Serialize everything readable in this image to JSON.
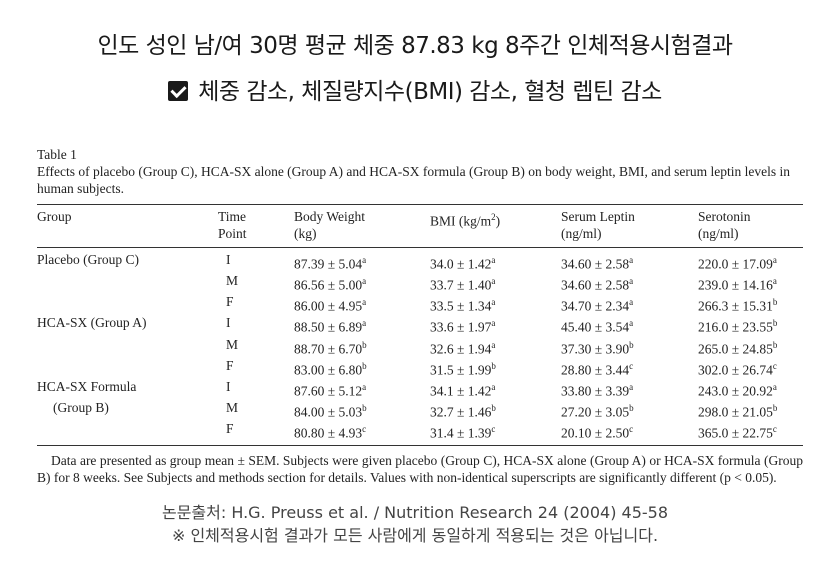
{
  "headline": "인도 성인 남/여 30명 평균 체중 87.83 kg 8주간 인체적용시험결과",
  "subheadline": "체중 감소, 체질량지수(BMI) 감소, 혈청 렙틴 감소",
  "table": {
    "label": "Table 1",
    "caption": "Effects of placebo (Group C), HCA-SX alone (Group A) and HCA-SX formula (Group B) on body weight, BMI, and serum leptin levels in human subjects.",
    "headers": [
      [
        "Group",
        ""
      ],
      [
        "Time",
        "Point"
      ],
      [
        "Body Weight",
        "(kg)"
      ],
      [
        "BMI (kg/m",
        "2",
        ")"
      ],
      [
        "Serum Leptin",
        "(ng/ml)"
      ],
      [
        "Serotonin",
        "(ng/ml)"
      ]
    ],
    "rows": [
      {
        "group": "Placebo (Group C)",
        "tp": "I",
        "bw": [
          "87.39 ± 5.04",
          "a"
        ],
        "bmi": [
          "34.0 ± 1.42",
          "a"
        ],
        "lep": [
          "34.60 ± 2.58",
          "a"
        ],
        "ser": [
          "220.0 ± 17.09",
          "a"
        ]
      },
      {
        "group": "",
        "tp": "M",
        "bw": [
          "86.56 ± 5.00",
          "a"
        ],
        "bmi": [
          "33.7 ± 1.40",
          "a"
        ],
        "lep": [
          "34.60 ± 2.58",
          "a"
        ],
        "ser": [
          "239.0 ± 14.16",
          "a"
        ]
      },
      {
        "group": "",
        "tp": "F",
        "bw": [
          "86.00 ± 4.95",
          "a"
        ],
        "bmi": [
          "33.5 ± 1.34",
          "a"
        ],
        "lep": [
          "34.70 ± 2.34",
          "a"
        ],
        "ser": [
          "266.3 ± 15.31",
          "b"
        ]
      },
      {
        "group": "HCA-SX (Group A)",
        "tp": "I",
        "bw": [
          "88.50 ± 6.89",
          "a"
        ],
        "bmi": [
          "33.6 ± 1.97",
          "a"
        ],
        "lep": [
          "45.40 ± 3.54",
          "a"
        ],
        "ser": [
          "216.0 ± 23.55",
          "b"
        ]
      },
      {
        "group": "",
        "tp": "M",
        "bw": [
          "88.70 ± 6.70",
          "b"
        ],
        "bmi": [
          "32.6 ± 1.94",
          "a"
        ],
        "lep": [
          "37.30 ± 3.90",
          "b"
        ],
        "ser": [
          "265.0 ± 24.85",
          "b"
        ]
      },
      {
        "group": "",
        "tp": "F",
        "bw": [
          "83.00 ± 6.80",
          "b"
        ],
        "bmi": [
          "31.5 ± 1.99",
          "b"
        ],
        "lep": [
          "28.80 ± 3.44",
          "c"
        ],
        "ser": [
          "302.0 ± 26.74",
          "c"
        ]
      },
      {
        "group": "HCA-SX Formula",
        "tp": "I",
        "bw": [
          "87.60 ± 5.12",
          "a"
        ],
        "bmi": [
          "34.1 ± 1.42",
          "a"
        ],
        "lep": [
          "33.80 ± 3.39",
          "a"
        ],
        "ser": [
          "243.0 ± 20.92",
          "a"
        ]
      },
      {
        "group": "(Group B)",
        "tp": "M",
        "bw": [
          "84.00 ± 5.03",
          "b"
        ],
        "bmi": [
          "32.7 ± 1.46",
          "b"
        ],
        "lep": [
          "27.20 ± 3.05",
          "b"
        ],
        "ser": [
          "298.0 ± 21.05",
          "b"
        ]
      },
      {
        "group": "",
        "tp": "F",
        "bw": [
          "80.80 ± 4.93",
          "c"
        ],
        "bmi": [
          "31.4 ± 1.39",
          "c"
        ],
        "lep": [
          "20.10 ± 2.50",
          "c"
        ],
        "ser": [
          "365.0 ± 22.75",
          "c"
        ]
      }
    ],
    "note": "Data are presented as group mean ± SEM. Subjects were given placebo (Group C), HCA-SX alone (Group A) or HCA-SX formula (Group B) for 8 weeks. See Subjects and methods section for details. Values with non-identical superscripts are significantly different (p < 0.05)."
  },
  "source": "논문출처: H.G. Preuss et al. / Nutrition Research 24 (2004) 45-58",
  "disclaimer": "※ 인체적용시험 결과가 모든 사람에게 동일하게 적용되는 것은 아닙니다."
}
